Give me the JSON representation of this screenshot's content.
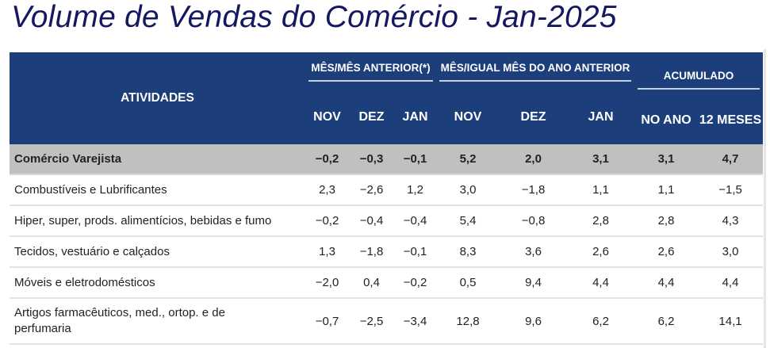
{
  "title": "Volume de Vendas do Comércio - Jan-2025",
  "header": {
    "atividades": "ATIVIDADES",
    "groups": [
      "MÊS/MÊS ANTERIOR(*)",
      "MÊS/IGUAL MÊS DO ANO ANTERIOR",
      "ACUMULADO"
    ],
    "columns": [
      "NOV",
      "DEZ",
      "JAN",
      "NOV",
      "DEZ",
      "JAN",
      "NO ANO",
      "12 MESES"
    ]
  },
  "rows": [
    {
      "label": "Comércio Varejista",
      "values": [
        "−0,2",
        "−0,3",
        "−0,1",
        "5,2",
        "2,0",
        "3,1",
        "3,1",
        "4,7"
      ]
    },
    {
      "label": "Combustíveis e Lubrificantes",
      "values": [
        "2,3",
        "−2,6",
        "1,2",
        "3,0",
        "−1,8",
        "1,1",
        "1,1",
        "−1,5"
      ]
    },
    {
      "label": "Hiper, super, prods. alimentícios, bebidas e fumo",
      "values": [
        "−0,2",
        "−0,4",
        "−0,4",
        "5,4",
        "−0,8",
        "2,8",
        "2,8",
        "4,3"
      ]
    },
    {
      "label": "Tecidos, vestuário e calçados",
      "values": [
        "1,3",
        "−1,8",
        "−0,1",
        "8,3",
        "3,6",
        "2,6",
        "2,6",
        "3,0"
      ]
    },
    {
      "label": "Móveis e eletrodomésticos",
      "values": [
        "−2,0",
        "0,4",
        "−0,2",
        "0,5",
        "9,4",
        "4,4",
        "4,4",
        "4,4"
      ]
    },
    {
      "label": "Artigos farmacêuticos, med., ortop. e de perfumaria",
      "values": [
        "−0,7",
        "−2,5",
        "−3,4",
        "12,8",
        "9,6",
        "6,2",
        "6,2",
        "14,1"
      ]
    }
  ]
}
